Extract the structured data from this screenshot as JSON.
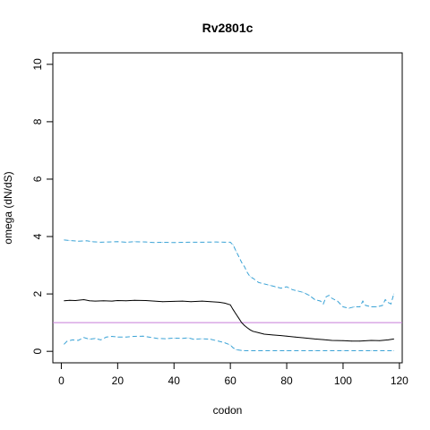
{
  "chart_data": {
    "type": "line",
    "title": "Rv2801c",
    "xlabel": "codon",
    "ylabel": "omega (dN/dS)",
    "xlim": [
      -3,
      121
    ],
    "ylim": [
      -0.4,
      10.4
    ],
    "x_ticks": [
      0,
      20,
      40,
      60,
      80,
      100,
      120
    ],
    "y_ticks": [
      0,
      2,
      4,
      6,
      8,
      10
    ],
    "reference_line": {
      "y": 1,
      "color": "#c77cd9"
    },
    "series": [
      {
        "role": "estimate",
        "color": "#000000",
        "style": "solid",
        "points": [
          [
            1,
            1.76
          ],
          [
            3,
            1.78
          ],
          [
            5,
            1.77
          ],
          [
            8,
            1.8
          ],
          [
            10,
            1.76
          ],
          [
            12,
            1.75
          ],
          [
            15,
            1.76
          ],
          [
            18,
            1.75
          ],
          [
            20,
            1.77
          ],
          [
            23,
            1.76
          ],
          [
            26,
            1.78
          ],
          [
            30,
            1.77
          ],
          [
            33,
            1.75
          ],
          [
            36,
            1.73
          ],
          [
            40,
            1.74
          ],
          [
            43,
            1.75
          ],
          [
            46,
            1.73
          ],
          [
            50,
            1.75
          ],
          [
            53,
            1.73
          ],
          [
            56,
            1.71
          ],
          [
            58,
            1.68
          ],
          [
            60,
            1.62
          ],
          [
            61,
            1.45
          ],
          [
            62,
            1.3
          ],
          [
            63,
            1.15
          ],
          [
            64,
            1.0
          ],
          [
            65,
            0.9
          ],
          [
            66,
            0.82
          ],
          [
            67,
            0.75
          ],
          [
            68,
            0.7
          ],
          [
            70,
            0.65
          ],
          [
            72,
            0.6
          ],
          [
            75,
            0.57
          ],
          [
            78,
            0.55
          ],
          [
            80,
            0.53
          ],
          [
            83,
            0.5
          ],
          [
            86,
            0.47
          ],
          [
            90,
            0.43
          ],
          [
            93,
            0.41
          ],
          [
            96,
            0.38
          ],
          [
            100,
            0.37
          ],
          [
            103,
            0.36
          ],
          [
            106,
            0.36
          ],
          [
            110,
            0.38
          ],
          [
            113,
            0.37
          ],
          [
            116,
            0.4
          ],
          [
            118,
            0.43
          ]
        ]
      },
      {
        "role": "upper-bound",
        "color": "#3ba3d6",
        "style": "dashed",
        "points": [
          [
            1,
            3.88
          ],
          [
            3,
            3.86
          ],
          [
            6,
            3.84
          ],
          [
            9,
            3.85
          ],
          [
            11,
            3.82
          ],
          [
            14,
            3.8
          ],
          [
            17,
            3.81
          ],
          [
            20,
            3.82
          ],
          [
            23,
            3.8
          ],
          [
            26,
            3.82
          ],
          [
            30,
            3.81
          ],
          [
            33,
            3.79
          ],
          [
            36,
            3.8
          ],
          [
            40,
            3.79
          ],
          [
            45,
            3.8
          ],
          [
            50,
            3.8
          ],
          [
            55,
            3.81
          ],
          [
            58,
            3.8
          ],
          [
            60,
            3.8
          ],
          [
            61,
            3.7
          ],
          [
            62,
            3.5
          ],
          [
            63,
            3.3
          ],
          [
            64,
            3.1
          ],
          [
            65,
            2.95
          ],
          [
            66,
            2.75
          ],
          [
            67,
            2.6
          ],
          [
            68,
            2.55
          ],
          [
            70,
            2.4
          ],
          [
            72,
            2.35
          ],
          [
            74,
            2.3
          ],
          [
            76,
            2.25
          ],
          [
            78,
            2.2
          ],
          [
            80,
            2.25
          ],
          [
            82,
            2.15
          ],
          [
            84,
            2.1
          ],
          [
            86,
            2.05
          ],
          [
            88,
            1.95
          ],
          [
            90,
            1.8
          ],
          [
            92,
            1.75
          ],
          [
            93,
            1.65
          ],
          [
            94,
            1.9
          ],
          [
            95,
            1.95
          ],
          [
            96,
            1.85
          ],
          [
            98,
            1.75
          ],
          [
            100,
            1.55
          ],
          [
            102,
            1.5
          ],
          [
            104,
            1.55
          ],
          [
            106,
            1.55
          ],
          [
            107,
            1.75
          ],
          [
            108,
            1.6
          ],
          [
            110,
            1.55
          ],
          [
            112,
            1.55
          ],
          [
            114,
            1.6
          ],
          [
            115,
            1.8
          ],
          [
            116,
            1.7
          ],
          [
            117,
            1.65
          ],
          [
            118,
            2.0
          ]
        ]
      },
      {
        "role": "lower-bound",
        "color": "#3ba3d6",
        "style": "dashed",
        "points": [
          [
            1,
            0.25
          ],
          [
            2,
            0.35
          ],
          [
            4,
            0.4
          ],
          [
            6,
            0.38
          ],
          [
            8,
            0.48
          ],
          [
            10,
            0.42
          ],
          [
            12,
            0.45
          ],
          [
            14,
            0.4
          ],
          [
            16,
            0.5
          ],
          [
            18,
            0.52
          ],
          [
            20,
            0.5
          ],
          [
            23,
            0.5
          ],
          [
            26,
            0.52
          ],
          [
            29,
            0.53
          ],
          [
            31,
            0.5
          ],
          [
            34,
            0.45
          ],
          [
            37,
            0.44
          ],
          [
            40,
            0.46
          ],
          [
            43,
            0.45
          ],
          [
            45,
            0.47
          ],
          [
            47,
            0.42
          ],
          [
            50,
            0.44
          ],
          [
            53,
            0.42
          ],
          [
            56,
            0.35
          ],
          [
            58,
            0.3
          ],
          [
            60,
            0.22
          ],
          [
            61,
            0.12
          ],
          [
            62,
            0.06
          ],
          [
            64,
            0.03
          ],
          [
            66,
            0.02
          ],
          [
            70,
            0.02
          ],
          [
            80,
            0.02
          ],
          [
            90,
            0.02
          ],
          [
            100,
            0.02
          ],
          [
            110,
            0.02
          ],
          [
            118,
            0.02
          ]
        ]
      }
    ]
  }
}
